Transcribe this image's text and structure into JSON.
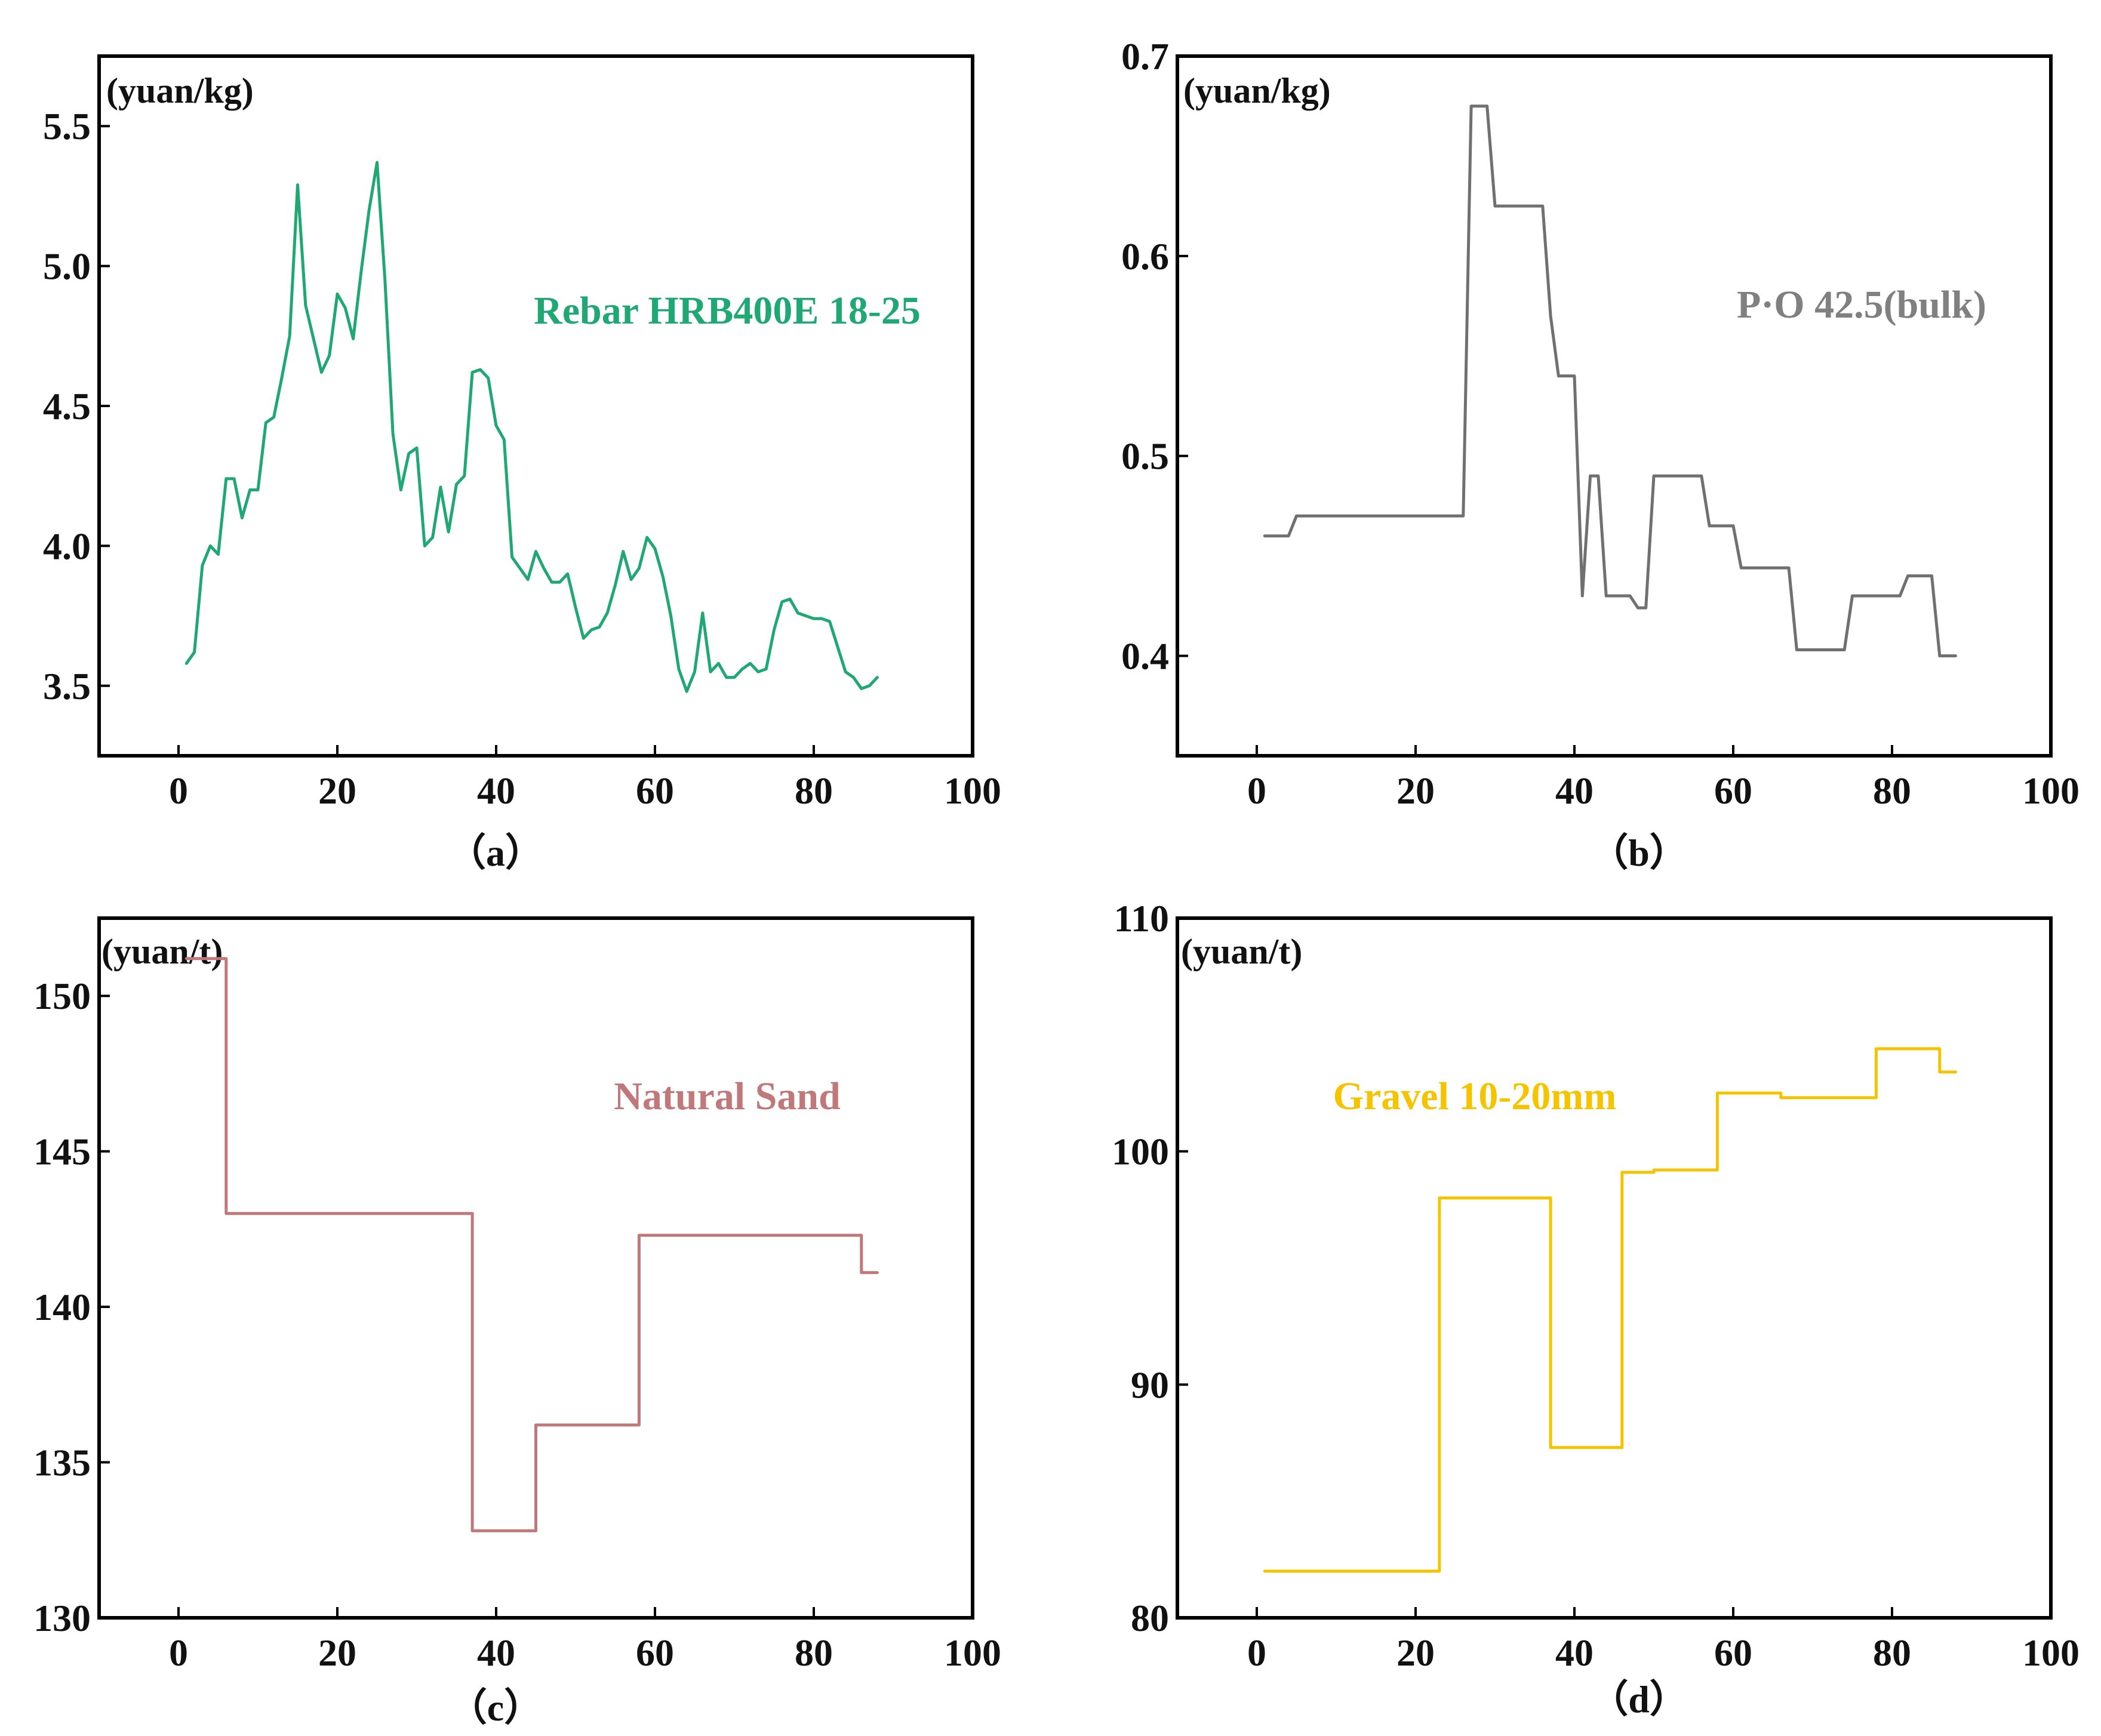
{
  "chart_data": [
    {
      "id": "a",
      "type": "line",
      "panel_label": "（a）",
      "unit_label": "(yuan/kg)",
      "series_label": "Rebar HRB400E 18-25",
      "color": "#1fa774",
      "xlim": [
        -10,
        100
      ],
      "ylim": [
        3.25,
        5.75
      ],
      "xticks": [
        0,
        20,
        40,
        60,
        80,
        100
      ],
      "yticks": [
        3.5,
        4.0,
        4.5,
        5.0,
        5.5
      ],
      "ytick_labels": [
        "3.5",
        "4.0",
        "4.5",
        "5.0",
        "5.5"
      ],
      "step": false,
      "x": [
        1,
        2,
        3,
        4,
        5,
        6,
        7,
        8,
        9,
        10,
        11,
        12,
        13,
        14,
        15,
        16,
        17,
        18,
        19,
        20,
        21,
        22,
        23,
        24,
        25,
        26,
        27,
        28,
        29,
        30,
        31,
        32,
        33,
        34,
        35,
        36,
        37,
        38,
        39,
        40,
        41,
        42,
        43,
        44,
        45,
        46,
        47,
        48,
        49,
        50,
        51,
        52,
        53,
        54,
        55,
        56,
        57,
        58,
        59,
        60,
        61,
        62,
        63,
        64,
        65,
        66,
        67,
        68,
        69,
        70,
        71,
        72,
        73,
        74,
        75,
        76,
        77,
        78,
        79,
        80,
        81,
        82,
        83,
        84,
        85,
        86,
        87,
        88
      ],
      "y": [
        3.58,
        3.62,
        3.93,
        4.0,
        3.97,
        4.24,
        4.24,
        4.1,
        4.2,
        4.2,
        4.44,
        4.46,
        4.6,
        4.75,
        5.29,
        4.86,
        4.74,
        4.62,
        4.68,
        4.9,
        4.85,
        4.74,
        4.98,
        5.2,
        5.37,
        4.95,
        4.4,
        4.2,
        4.33,
        4.35,
        4.0,
        4.03,
        4.21,
        4.05,
        4.22,
        4.25,
        4.62,
        4.63,
        4.6,
        4.43,
        4.38,
        3.96,
        3.92,
        3.88,
        3.98,
        3.92,
        3.87,
        3.87,
        3.9,
        3.78,
        3.67,
        3.7,
        3.71,
        3.76,
        3.86,
        3.98,
        3.88,
        3.92,
        4.03,
        3.99,
        3.89,
        3.75,
        3.56,
        3.48,
        3.55,
        3.76,
        3.55,
        3.58,
        3.53,
        3.53,
        3.56,
        3.58,
        3.55,
        3.56,
        3.7,
        3.8,
        3.81,
        3.76,
        3.75,
        3.74,
        3.74,
        3.73,
        3.64,
        3.55,
        3.53,
        3.49,
        3.5,
        3.53
      ]
    },
    {
      "id": "b",
      "type": "line",
      "panel_label": "（b）",
      "unit_label": "(yuan/kg)",
      "series_label": "P·O 42.5(bulk)",
      "color": "#707070",
      "xlim": [
        -10,
        100
      ],
      "ylim": [
        0.35,
        0.7
      ],
      "xticks": [
        0,
        20,
        40,
        60,
        80,
        100
      ],
      "yticks": [
        0.4,
        0.5,
        0.6,
        0.7
      ],
      "ytick_labels": [
        "0.4",
        "0.5",
        "0.6",
        "0.7"
      ],
      "step": false,
      "x": [
        1,
        4,
        5,
        26,
        27,
        28,
        29,
        30,
        36,
        37,
        38,
        40,
        41,
        42,
        43,
        44,
        47,
        48,
        49,
        50,
        56,
        57,
        59,
        60,
        61,
        62,
        67,
        68,
        74,
        75,
        81,
        82,
        85,
        86,
        88
      ],
      "y": [
        0.46,
        0.46,
        0.47,
        0.47,
        0.675,
        0.675,
        0.675,
        0.625,
        0.625,
        0.57,
        0.54,
        0.54,
        0.43,
        0.49,
        0.49,
        0.43,
        0.43,
        0.424,
        0.424,
        0.49,
        0.49,
        0.465,
        0.465,
        0.465,
        0.444,
        0.444,
        0.444,
        0.403,
        0.403,
        0.43,
        0.43,
        0.44,
        0.44,
        0.4,
        0.4
      ]
    },
    {
      "id": "c",
      "type": "line",
      "panel_label": "（c）",
      "unit_label": "(yuan/t)",
      "series_label": "Natural Sand",
      "color": "#c0797a",
      "xlim": [
        -10,
        100
      ],
      "ylim": [
        130,
        152.5
      ],
      "xticks": [
        0,
        20,
        40,
        60,
        80,
        100
      ],
      "yticks": [
        130,
        135,
        140,
        145,
        150
      ],
      "ytick_labels": [
        "130",
        "135",
        "140",
        "145",
        "150"
      ],
      "step": true,
      "x": [
        1,
        6,
        37,
        45,
        58,
        85,
        86,
        88
      ],
      "y": [
        151.2,
        143.0,
        132.8,
        136.2,
        142.3,
        142.3,
        141.1,
        141.1
      ]
    },
    {
      "id": "d",
      "type": "line",
      "panel_label": "（d）",
      "unit_label": "(yuan/t)",
      "series_label": "Gravel 10-20mm",
      "color": "#f5c400",
      "xlim": [
        -10,
        100
      ],
      "ylim": [
        80,
        110
      ],
      "xticks": [
        0,
        20,
        40,
        60,
        80,
        100
      ],
      "yticks": [
        80,
        90,
        100,
        110
      ],
      "ytick_labels": [
        "80",
        "90",
        "100",
        "110"
      ],
      "step": true,
      "x": [
        1,
        23,
        37,
        46,
        50,
        58,
        66,
        78,
        86,
        88
      ],
      "y": [
        82.0,
        98.0,
        87.3,
        99.1,
        99.2,
        102.5,
        102.3,
        104.4,
        103.4,
        103.4
      ]
    }
  ]
}
